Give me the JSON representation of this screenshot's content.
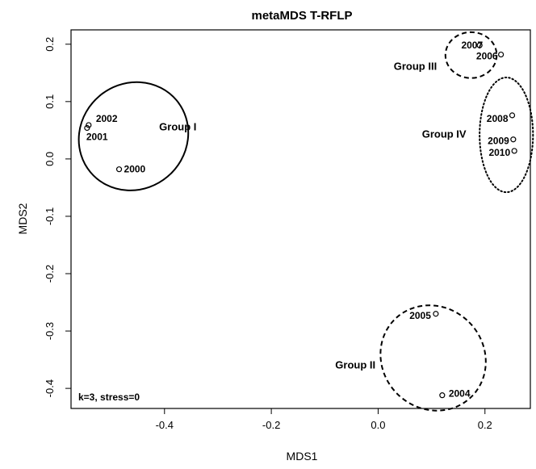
{
  "chart_data": {
    "type": "scatter",
    "title": "metaMDS  T-RFLP",
    "xlabel": "MDS1",
    "ylabel": "MDS2",
    "xlim": [
      -0.575,
      0.285
    ],
    "ylim": [
      -0.435,
      0.225
    ],
    "xticks": [
      -0.4,
      -0.2,
      0.0,
      0.2
    ],
    "xtick_labels": [
      "-0.4",
      "-0.2",
      "0.0",
      "0.2"
    ],
    "yticks": [
      -0.4,
      -0.3,
      -0.2,
      -0.1,
      0.0,
      0.1,
      0.2
    ],
    "ytick_labels": [
      "-0.4",
      "-0.3",
      "-0.2",
      "-0.1",
      "0.0",
      "0.1",
      "0.2"
    ],
    "grid": false,
    "annotation": "k=3, stress=0",
    "points": [
      {
        "label": "2000",
        "x": -0.485,
        "y": -0.018
      },
      {
        "label": "2001",
        "x": -0.545,
        "y": 0.054
      },
      {
        "label": "2002",
        "x": -0.542,
        "y": 0.059
      },
      {
        "label": "2004",
        "x": 0.12,
        "y": -0.412
      },
      {
        "label": "2005",
        "x": 0.108,
        "y": -0.27
      },
      {
        "label": "2006",
        "x": 0.23,
        "y": 0.182
      },
      {
        "label": "2007",
        "x": 0.19,
        "y": 0.198
      },
      {
        "label": "2008",
        "x": 0.251,
        "y": 0.076
      },
      {
        "label": "2009",
        "x": 0.253,
        "y": 0.034
      },
      {
        "label": "2010",
        "x": 0.255,
        "y": 0.014
      }
    ],
    "groups": [
      {
        "name": "Group I",
        "line": "solid",
        "cx": -0.458,
        "cy": 0.0395,
        "rx": 0.105,
        "ry": 0.092,
        "rotation": 40
      },
      {
        "name": "Group II",
        "line": "dashed",
        "cx": 0.103,
        "cy": -0.347,
        "rx": 0.095,
        "ry": 0.095,
        "rotation": 45
      },
      {
        "name": "Group III",
        "line": "dashed",
        "cx": 0.174,
        "cy": 0.181,
        "rx": 0.048,
        "ry": 0.04,
        "rotation": 0
      },
      {
        "name": "Group IV",
        "line": "dotted",
        "cx": 0.24,
        "cy": 0.042,
        "rx": 0.05,
        "ry": 0.1,
        "rotation": 0
      }
    ]
  }
}
